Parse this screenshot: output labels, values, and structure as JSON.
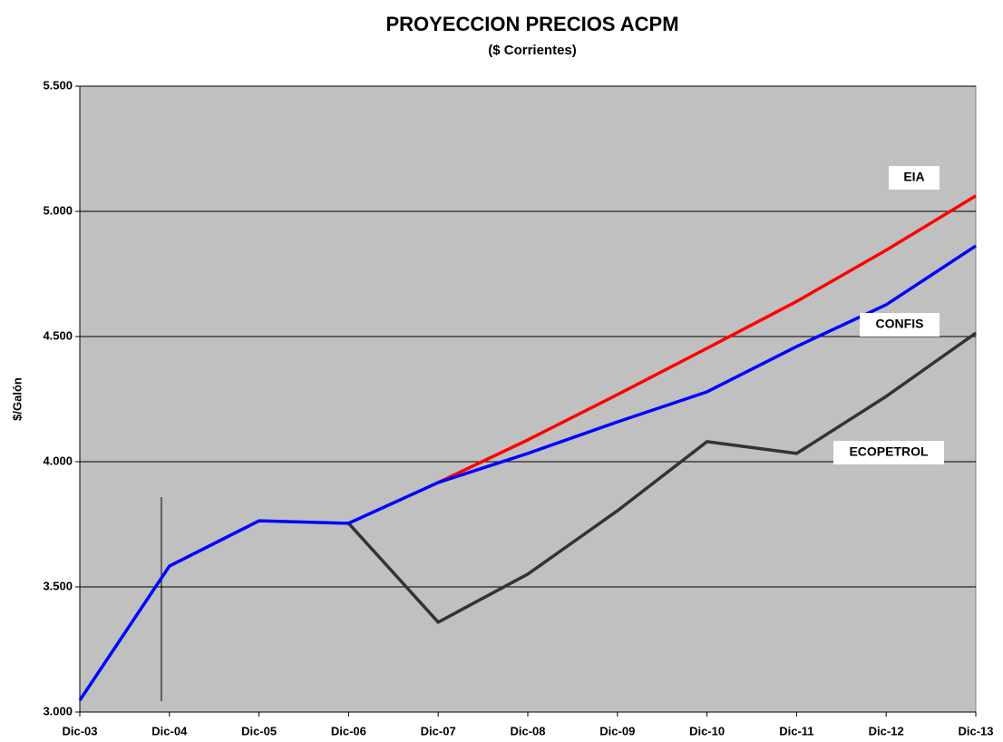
{
  "chart_data": {
    "type": "line",
    "title": "PROYECCION PRECIOS ACPM",
    "subtitle": "($ Corrientes)",
    "y_label": "$/Galón",
    "categories": [
      "Dic-03",
      "Dic-04",
      "Dic-05",
      "Dic-06",
      "Dic-07",
      "Dic-08",
      "Dic-09",
      "Dic-10",
      "Dic-11",
      "Dic-12",
      "Dic-13"
    ],
    "series": [
      {
        "name": "EIA",
        "color": "#ff0000",
        "values": [
          null,
          null,
          null,
          null,
          3917,
          4087,
          4268,
          4453,
          4640,
          4845,
          5062
        ]
      },
      {
        "name": "CONFIS",
        "color": "#0000ff",
        "values": [
          3047,
          3583,
          3764,
          3754,
          3917,
          4033,
          4159,
          4279,
          4460,
          4627,
          4862
        ]
      },
      {
        "name": "ECOPETROL",
        "color": "#333333",
        "values": [
          null,
          null,
          null,
          3754,
          3359,
          3551,
          3804,
          4080,
          4033,
          4261,
          4514
        ]
      }
    ],
    "ylim": [
      3000,
      5500
    ],
    "yticks": [
      {
        "value": 3000,
        "label": "3.000"
      },
      {
        "value": 3500,
        "label": "3.500"
      },
      {
        "value": 4000,
        "label": "4.000"
      },
      {
        "value": 4500,
        "label": "4.500"
      },
      {
        "value": 5000,
        "label": "5.000"
      },
      {
        "value": 5500,
        "label": "5.500"
      }
    ],
    "grid": true,
    "plot_background": "#c0c0c0"
  }
}
